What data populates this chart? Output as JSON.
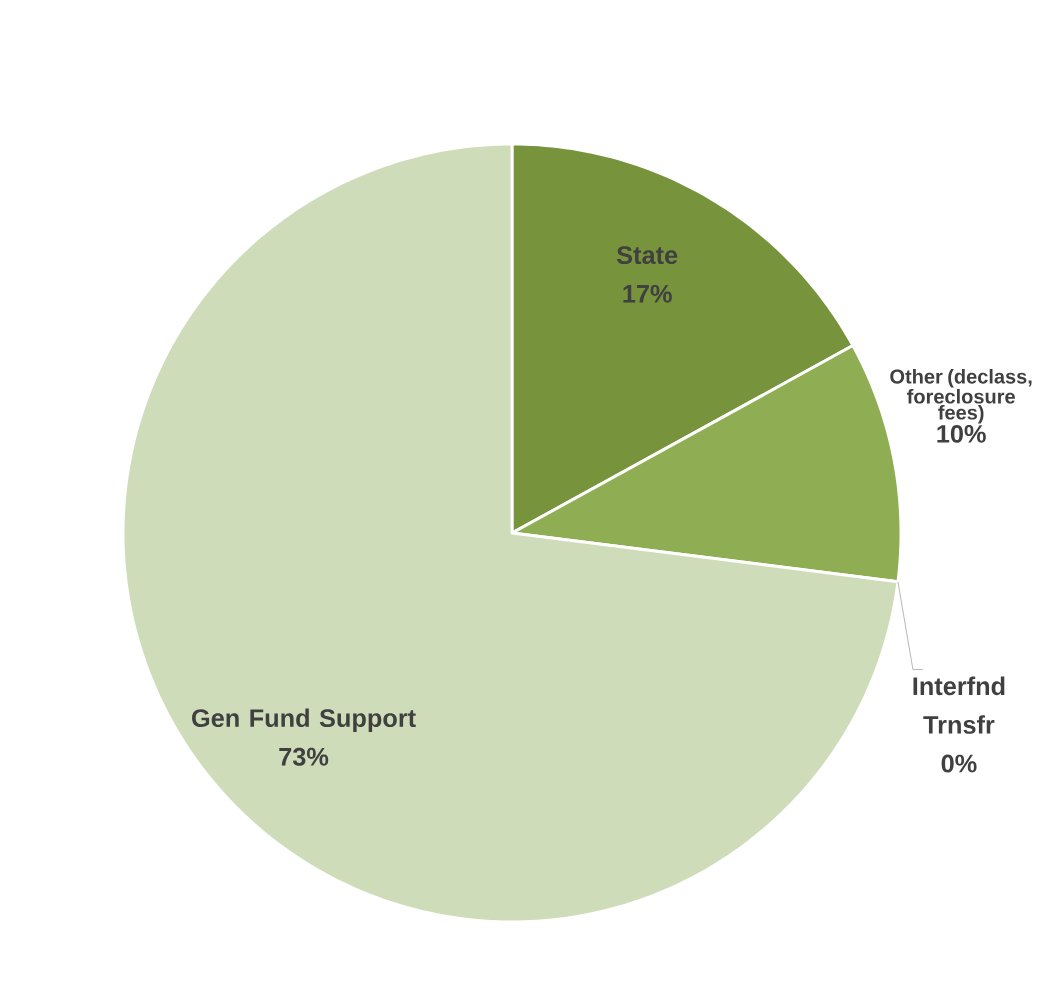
{
  "chart_data": {
    "type": "pie",
    "categories": [
      "State",
      "Other (declass, foreclosure fees)",
      "Interfnd Trnsfr",
      "Gen Fund Support"
    ],
    "values": [
      17,
      10,
      0,
      73
    ],
    "colors": [
      "#77933c",
      "#8fae53",
      "#c3d69b",
      "#cfdcb9"
    ],
    "value_labels": [
      "17%",
      "10%",
      "0%",
      "73%"
    ]
  }
}
